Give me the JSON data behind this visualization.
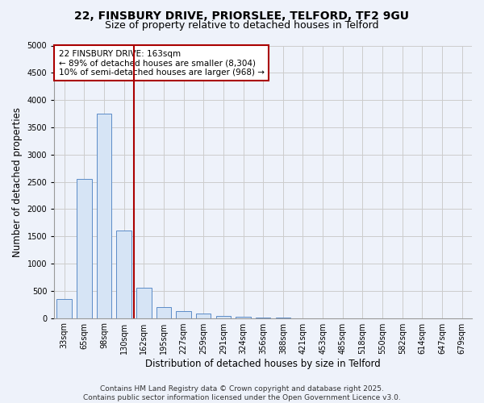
{
  "title_line1": "22, FINSBURY DRIVE, PRIORSLEE, TELFORD, TF2 9GU",
  "title_line2": "Size of property relative to detached houses in Telford",
  "xlabel": "Distribution of detached houses by size in Telford",
  "ylabel": "Number of detached properties",
  "categories": [
    "33sqm",
    "65sqm",
    "98sqm",
    "130sqm",
    "162sqm",
    "195sqm",
    "227sqm",
    "259sqm",
    "291sqm",
    "324sqm",
    "356sqm",
    "388sqm",
    "421sqm",
    "453sqm",
    "485sqm",
    "518sqm",
    "550sqm",
    "582sqm",
    "614sqm",
    "647sqm",
    "679sqm"
  ],
  "values": [
    350,
    2550,
    3750,
    1600,
    550,
    200,
    130,
    80,
    40,
    20,
    10,
    5,
    0,
    0,
    0,
    0,
    0,
    0,
    0,
    0,
    0
  ],
  "bar_color": "#d6e4f5",
  "bar_edge_color": "#5b8cc8",
  "vline_color": "#aa0000",
  "annotation_box_text": "22 FINSBURY DRIVE: 163sqm\n← 89% of detached houses are smaller (8,304)\n10% of semi-detached houses are larger (968) →",
  "annotation_box_color": "#aa0000",
  "annotation_fill_color": "#ffffff",
  "ylim": [
    0,
    5000
  ],
  "yticks": [
    0,
    500,
    1000,
    1500,
    2000,
    2500,
    3000,
    3500,
    4000,
    4500,
    5000
  ],
  "grid_color": "#cccccc",
  "background_color": "#eef2fa",
  "footer_text": "Contains HM Land Registry data © Crown copyright and database right 2025.\nContains public sector information licensed under the Open Government Licence v3.0.",
  "title_fontsize": 10,
  "subtitle_fontsize": 9,
  "axis_label_fontsize": 8.5,
  "tick_fontsize": 7,
  "annotation_fontsize": 7.5,
  "footer_fontsize": 6.5,
  "vline_bar_index": 3
}
